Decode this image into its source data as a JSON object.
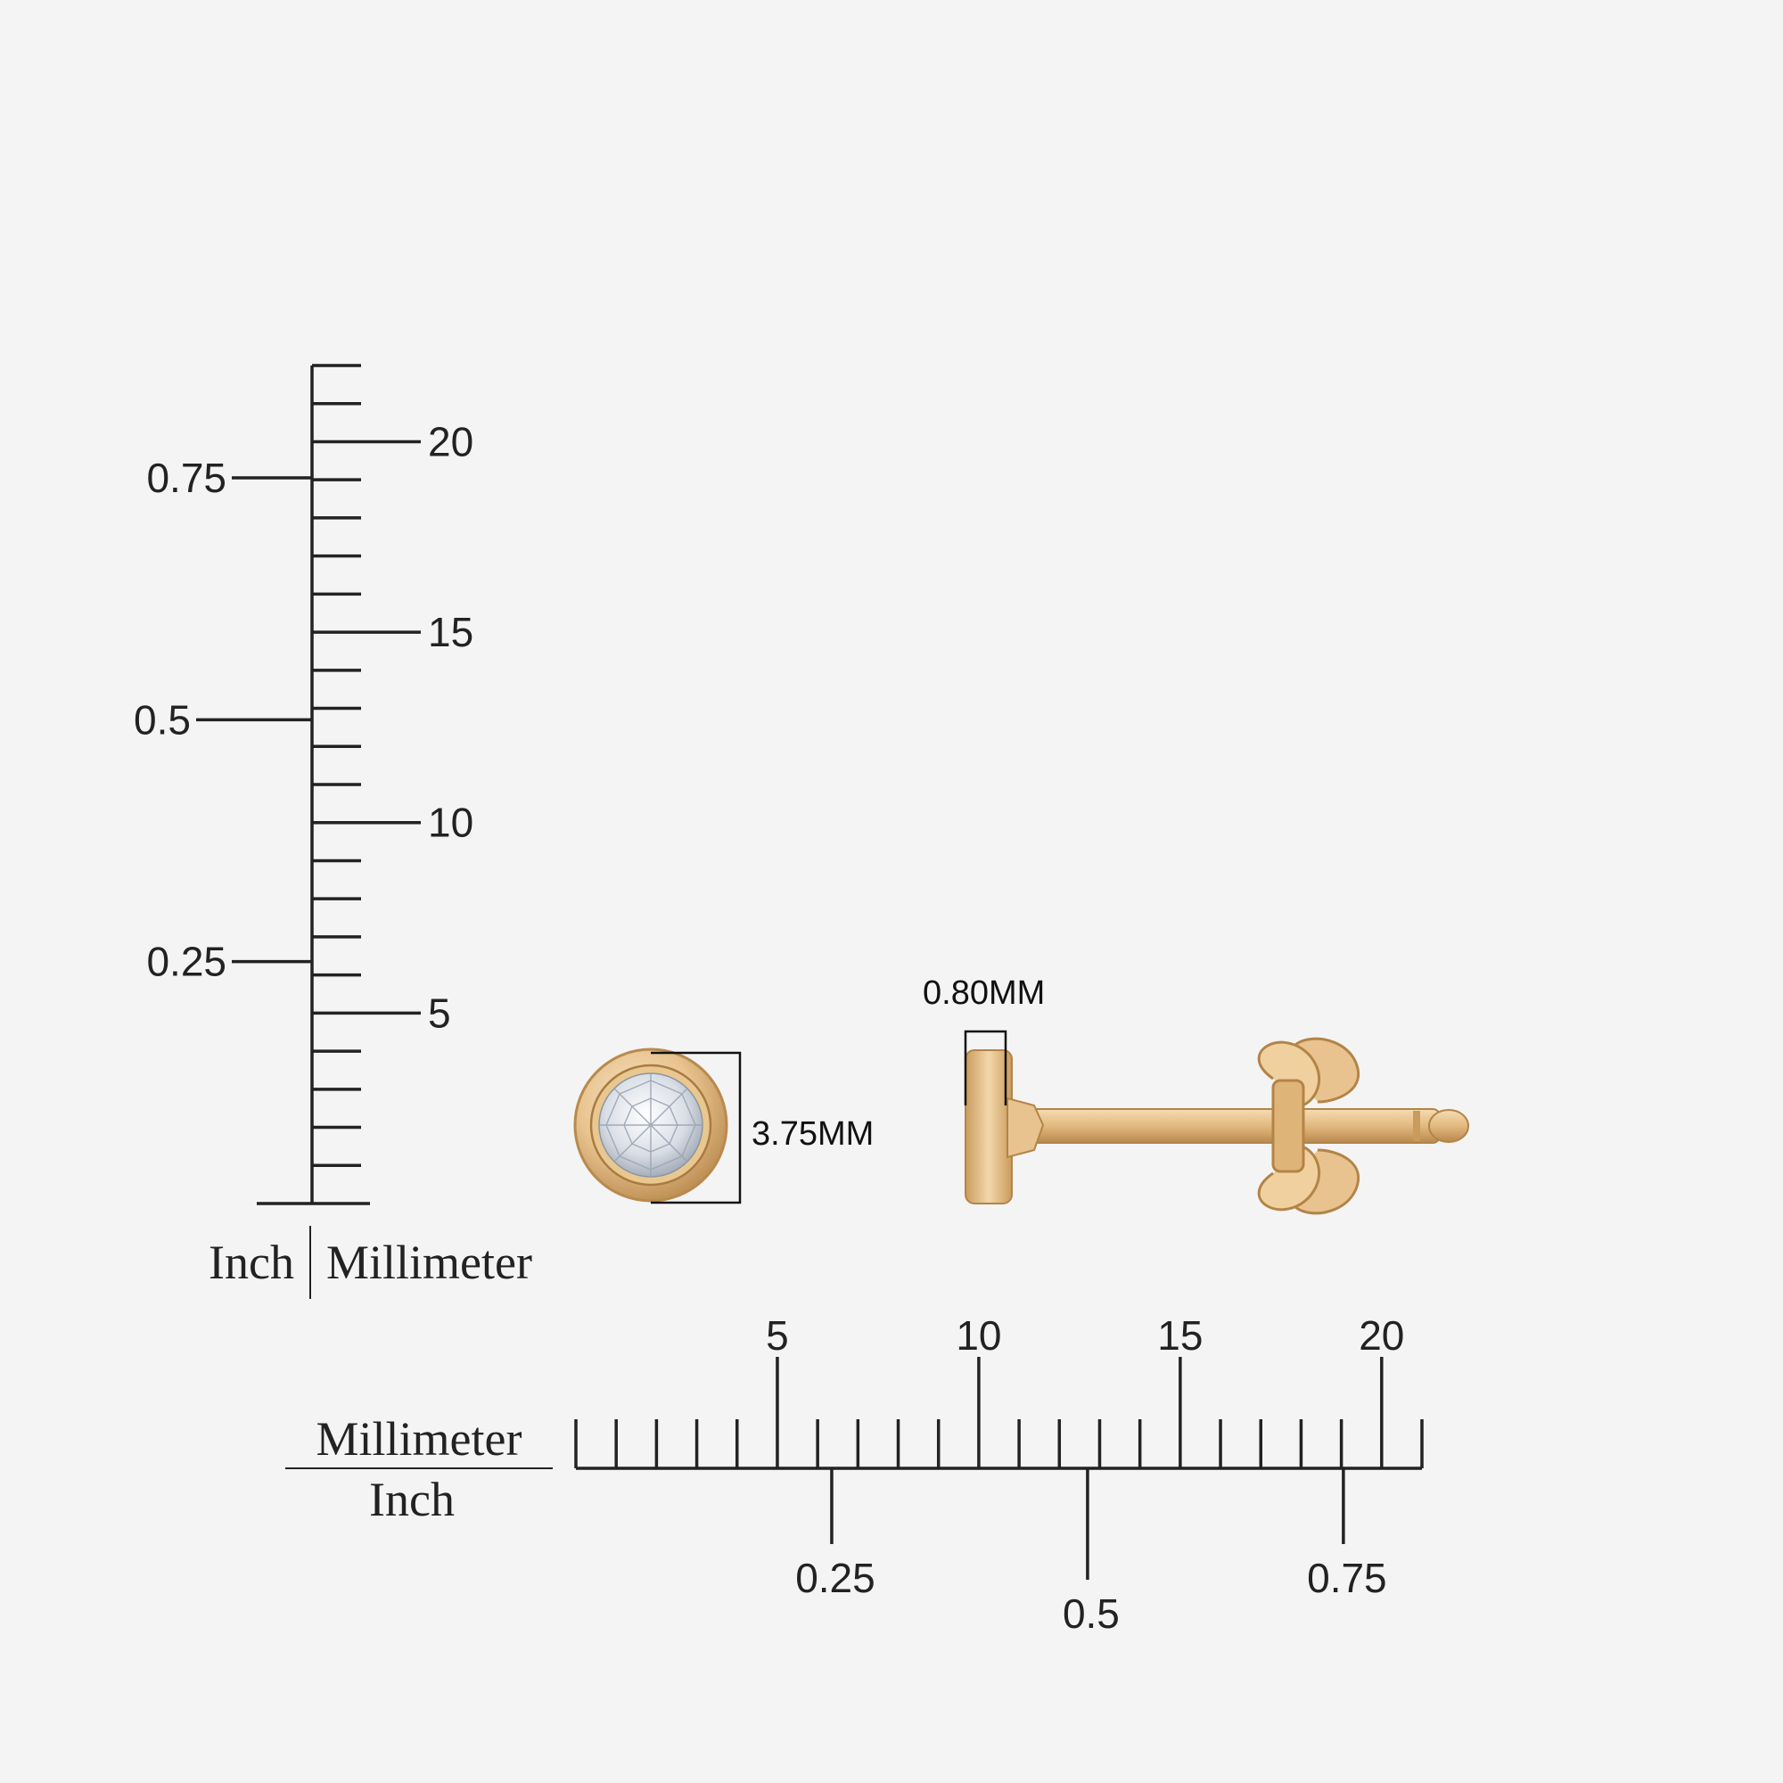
{
  "vertical_ruler": {
    "mm_labels": [
      "5",
      "10",
      "15",
      "20"
    ],
    "inch_labels": [
      "0.25",
      "0.5",
      "0.75"
    ],
    "inch_caption": "Inch",
    "mm_caption": "Millimeter"
  },
  "horizontal_ruler": {
    "mm_labels": [
      "5",
      "10",
      "15",
      "20"
    ],
    "inch_labels": [
      "0.25",
      "0.5",
      "0.75"
    ],
    "mm_caption": "Millimeter",
    "inch_caption": "Inch"
  },
  "earring": {
    "diameter_label": "3.75MM",
    "thickness_label": "0.80MM",
    "metal_color": "#e8c38f",
    "metal_shade": "#c99c5e",
    "stone_color": "#dfe3ea"
  },
  "colors": {
    "background": "#f4f4f4",
    "ink": "#222222"
  }
}
